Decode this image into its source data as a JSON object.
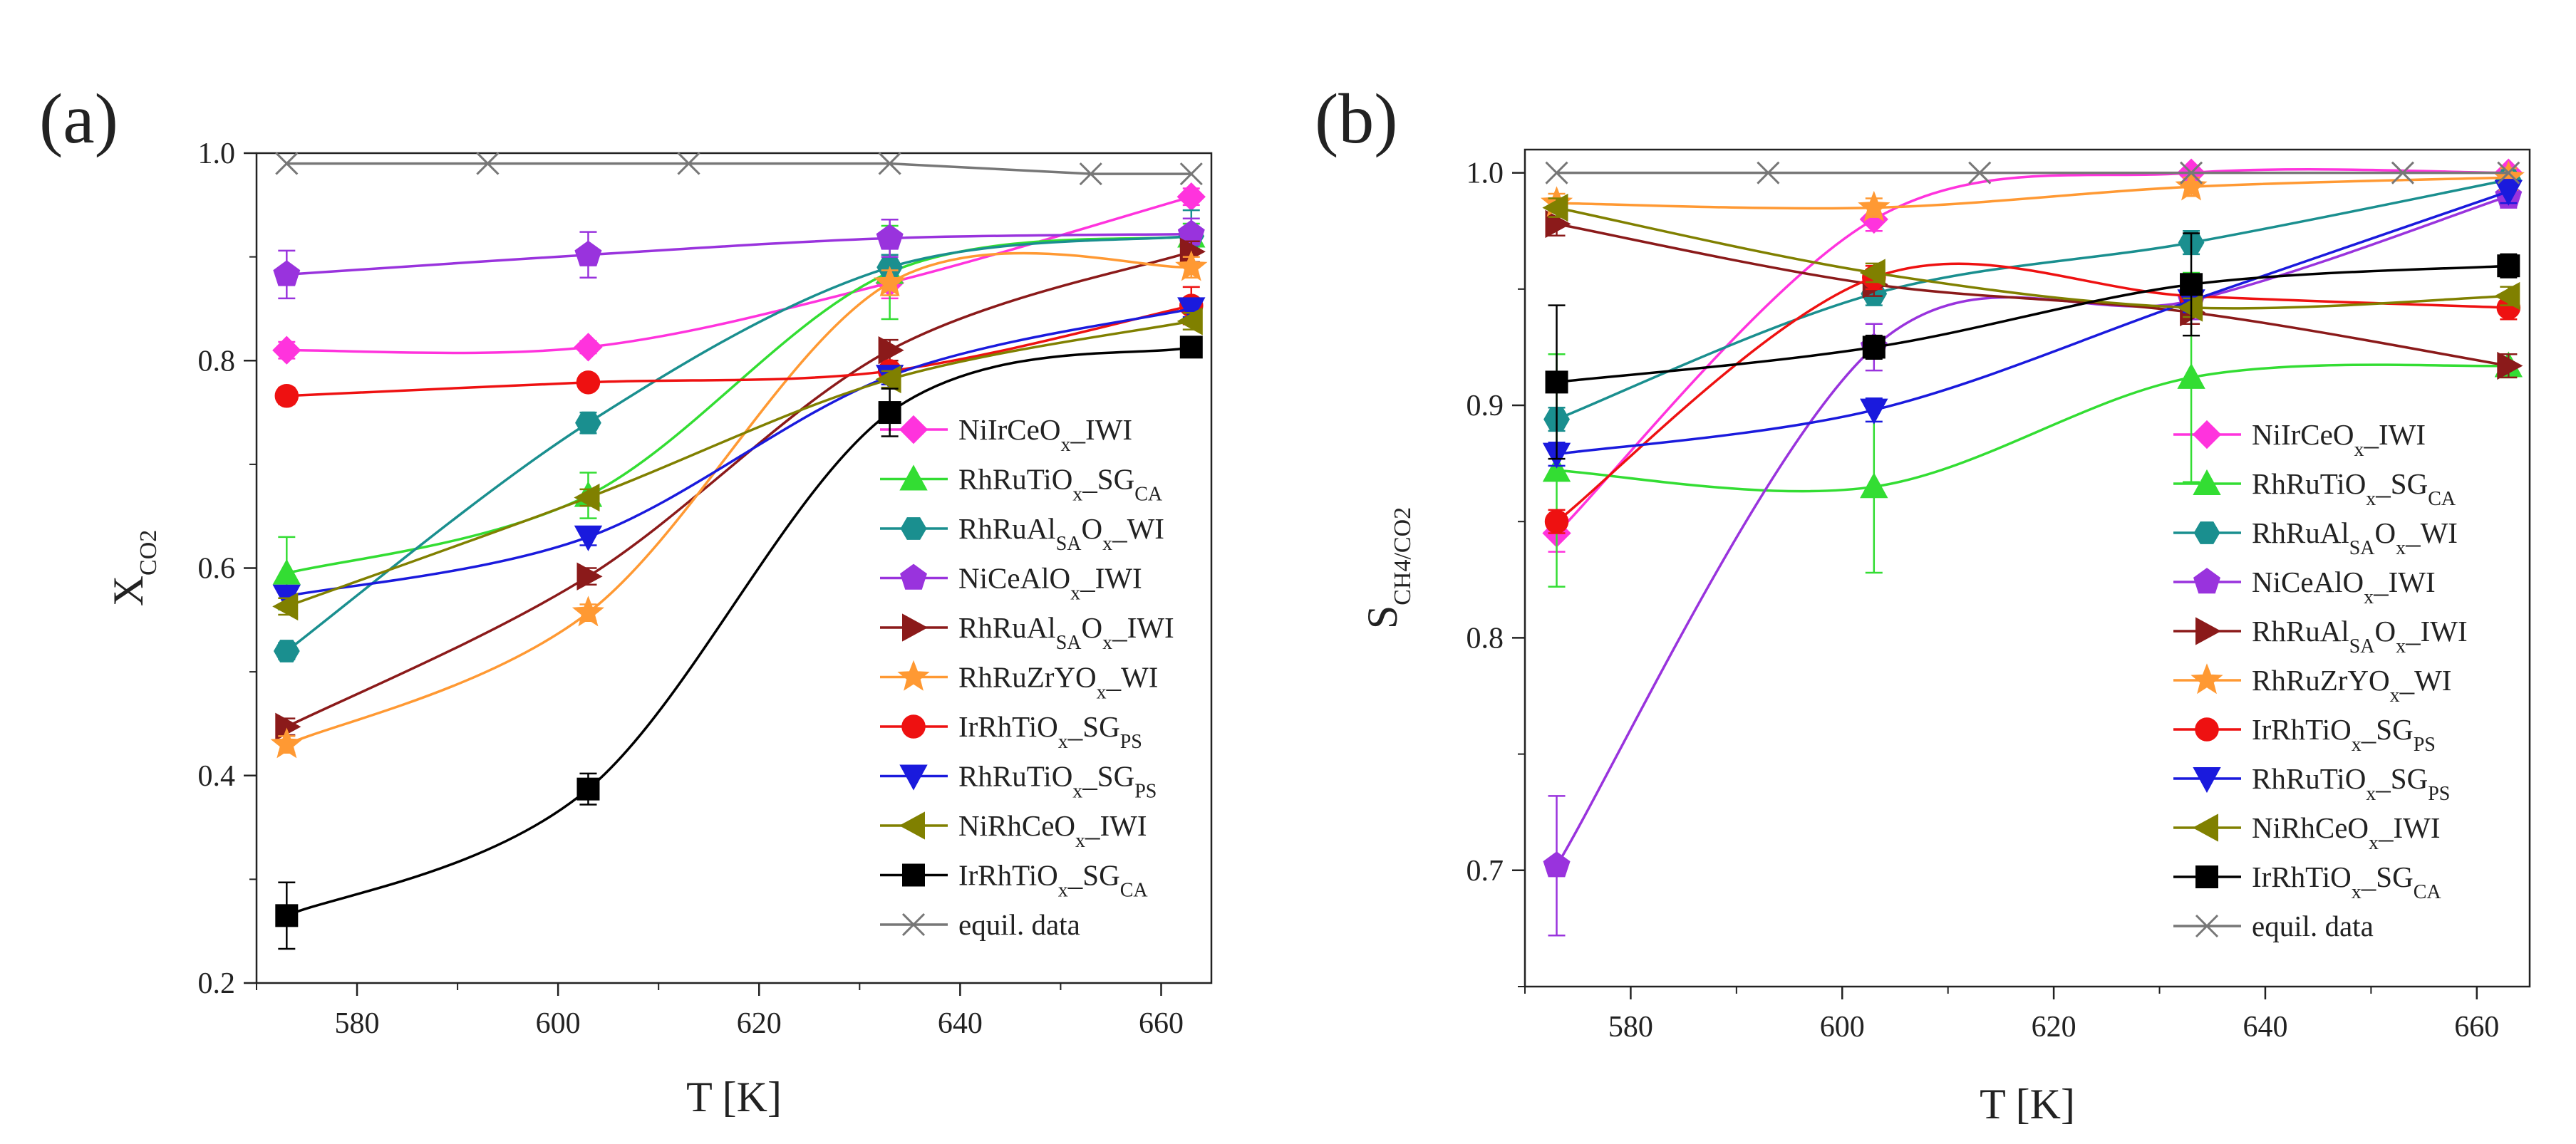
{
  "chart_data": [
    {
      "type": "line",
      "panel_label": "(a)",
      "xlabel": "T [K]",
      "ylabel": {
        "main": "X",
        "sub": "CO2"
      },
      "xlim": [
        570,
        665
      ],
      "ylim": [
        0.2,
        1.0
      ],
      "xticks": [
        "580",
        "600",
        "620",
        "640",
        "660"
      ],
      "yticks": [
        "0.2",
        "0.4",
        "0.6",
        "0.8",
        "1.0"
      ],
      "legend_position": "lower-right",
      "series": [
        {
          "name": "NiIrCeOx_IWI",
          "label": [
            {
              "t": "NiIrCeO"
            },
            {
              "t": "x",
              "s": 1
            },
            {
              "t": "_IWI"
            }
          ],
          "color": "#ff33dd",
          "marker": "diamond",
          "x": [
            573,
            603,
            633,
            663
          ],
          "y": [
            0.81,
            0.813,
            0.875,
            0.958
          ],
          "err": [
            0.008,
            0.006,
            0.015,
            0.008
          ]
        },
        {
          "name": "RhRuTiOx_SGCA",
          "label": [
            {
              "t": "RhRuTiO"
            },
            {
              "t": "x",
              "s": 1
            },
            {
              "t": "_SG"
            },
            {
              "t": "CA",
              "s": 1
            }
          ],
          "color": "#33dd33",
          "marker": "triangle-up",
          "x": [
            573,
            603,
            633,
            663
          ],
          "y": [
            0.595,
            0.67,
            0.885,
            0.92
          ],
          "err": [
            0.035,
            0.022,
            0.045,
            0.012
          ]
        },
        {
          "name": "RhRuAlSAOx_WI",
          "label": [
            {
              "t": "RhRuAl"
            },
            {
              "t": "SA",
              "s": 1
            },
            {
              "t": "O"
            },
            {
              "t": "x",
              "s": 1
            },
            {
              "t": "_WI"
            }
          ],
          "color": "#1a8f8f",
          "marker": "hexagon",
          "x": [
            573,
            603,
            633,
            663
          ],
          "y": [
            0.52,
            0.74,
            0.89,
            0.92
          ],
          "err": [
            0.008,
            0.01,
            0.012,
            0.025
          ]
        },
        {
          "name": "NiCeAlOx_IWI",
          "label": [
            {
              "t": "NiCeAlO"
            },
            {
              "t": "x",
              "s": 1
            },
            {
              "t": "_IWI"
            }
          ],
          "color": "#9933dd",
          "marker": "pentagon",
          "x": [
            573,
            603,
            633,
            663
          ],
          "y": [
            0.883,
            0.902,
            0.918,
            0.922
          ],
          "err": [
            0.023,
            0.022,
            0.018,
            0.015
          ]
        },
        {
          "name": "RhRuAlSAOx_IWI",
          "label": [
            {
              "t": "RhRuAl"
            },
            {
              "t": "SA",
              "s": 1
            },
            {
              "t": "O"
            },
            {
              "t": "x",
              "s": 1
            },
            {
              "t": "_IWI"
            }
          ],
          "color": "#8b1a1a",
          "marker": "triangle-right",
          "x": [
            573,
            603,
            633,
            663
          ],
          "y": [
            0.447,
            0.592,
            0.81,
            0.905
          ],
          "err": [
            0.008,
            0.008,
            0.01,
            0.01
          ]
        },
        {
          "name": "RhRuZrYOx_WI",
          "label": [
            {
              "t": "RhRuZrYO"
            },
            {
              "t": "x",
              "s": 1
            },
            {
              "t": "_WI"
            }
          ],
          "color": "#ff9933",
          "marker": "star",
          "x": [
            573,
            603,
            633,
            663
          ],
          "y": [
            0.43,
            0.557,
            0.875,
            0.89
          ],
          "err": [
            0.008,
            0.008,
            0.012,
            0.01
          ]
        },
        {
          "name": "IrRhTiOx_SGPS",
          "label": [
            {
              "t": "IrRhTiO"
            },
            {
              "t": "x",
              "s": 1
            },
            {
              "t": "_SG"
            },
            {
              "t": "PS",
              "s": 1
            }
          ],
          "color": "#ee1111",
          "marker": "circle",
          "x": [
            573,
            603,
            633,
            663
          ],
          "y": [
            0.766,
            0.779,
            0.79,
            0.853
          ],
          "err": [
            0.008,
            0.006,
            0.006,
            0.018
          ]
        },
        {
          "name": "RhRuTiOx_SGPS",
          "label": [
            {
              "t": "RhRuTiO"
            },
            {
              "t": "x",
              "s": 1
            },
            {
              "t": "_SG"
            },
            {
              "t": "PS",
              "s": 1
            }
          ],
          "color": "#1a1add",
          "marker": "triangle-down",
          "x": [
            573,
            603,
            633,
            663
          ],
          "y": [
            0.573,
            0.63,
            0.785,
            0.85
          ],
          "err": [
            0.008,
            0.008,
            0.008,
            0.008
          ]
        },
        {
          "name": "NiRhCeOx_IWI",
          "label": [
            {
              "t": "NiRhCeO"
            },
            {
              "t": "x",
              "s": 1
            },
            {
              "t": "_IWI"
            }
          ],
          "color": "#808000",
          "marker": "triangle-left",
          "x": [
            573,
            603,
            633,
            663
          ],
          "y": [
            0.563,
            0.668,
            0.782,
            0.838
          ],
          "err": [
            0.008,
            0.008,
            0.008,
            0.008
          ]
        },
        {
          "name": "IrRhTiOx_SGCA",
          "label": [
            {
              "t": "IrRhTiO"
            },
            {
              "t": "x",
              "s": 1
            },
            {
              "t": "_SG"
            },
            {
              "t": "CA",
              "s": 1
            }
          ],
          "color": "#000000",
          "marker": "square",
          "x": [
            573,
            603,
            633,
            663
          ],
          "y": [
            0.265,
            0.387,
            0.75,
            0.813
          ],
          "err": [
            0.032,
            0.015,
            0.023,
            0.006
          ]
        },
        {
          "name": "equil. data",
          "label": [
            {
              "t": "equil. data"
            }
          ],
          "color": "#777777",
          "marker": "x",
          "straight": true,
          "x": [
            573,
            593,
            613,
            633,
            653,
            663
          ],
          "y": [
            0.99,
            0.99,
            0.99,
            0.99,
            0.98,
            0.98
          ],
          "err": []
        }
      ]
    },
    {
      "type": "line",
      "panel_label": "(b)",
      "xlabel": "T [K]",
      "ylabel": {
        "main": "S",
        "sub": "CH4/CO2"
      },
      "xlim": [
        570,
        665
      ],
      "ylim": [
        0.65,
        1.01
      ],
      "xticks": [
        "580",
        "600",
        "620",
        "640",
        "660"
      ],
      "yticks": [
        "0.7",
        "0.8",
        "0.9",
        "1.0"
      ],
      "legend_position": "lower-right",
      "series": [
        {
          "name": "NiIrCeOx_IWI",
          "label": [
            {
              "t": "NiIrCeO"
            },
            {
              "t": "x",
              "s": 1
            },
            {
              "t": "_IWI"
            }
          ],
          "color": "#ff33dd",
          "marker": "diamond",
          "x": [
            573,
            603,
            633,
            663
          ],
          "y": [
            0.845,
            0.98,
            1.0,
            1.0
          ],
          "err": [
            0.008,
            0.005,
            0.002,
            0.002
          ]
        },
        {
          "name": "RhRuTiOx_SGCA",
          "label": [
            {
              "t": "RhRuTiO"
            },
            {
              "t": "x",
              "s": 1
            },
            {
              "t": "_SG"
            },
            {
              "t": "CA",
              "s": 1
            }
          ],
          "color": "#33dd33",
          "marker": "triangle-up",
          "x": [
            573,
            603,
            633,
            663
          ],
          "y": [
            0.872,
            0.865,
            0.912,
            0.917
          ],
          "err": [
            0.05,
            0.037,
            0.045,
            0.005
          ]
        },
        {
          "name": "RhRuAlSAOx_WI",
          "label": [
            {
              "t": "RhRuAl"
            },
            {
              "t": "SA",
              "s": 1
            },
            {
              "t": "O"
            },
            {
              "t": "x",
              "s": 1
            },
            {
              "t": "_WI"
            }
          ],
          "color": "#1a8f8f",
          "marker": "hexagon",
          "x": [
            573,
            603,
            633,
            663
          ],
          "y": [
            0.894,
            0.948,
            0.97,
            0.997
          ],
          "err": [
            0.005,
            0.005,
            0.005,
            0.003
          ]
        },
        {
          "name": "NiCeAlOx_IWI",
          "label": [
            {
              "t": "NiCeAlO"
            },
            {
              "t": "x",
              "s": 1
            },
            {
              "t": "_IWI"
            }
          ],
          "color": "#9933dd",
          "marker": "pentagon",
          "x": [
            573,
            603,
            633,
            663
          ],
          "y": [
            0.702,
            0.925,
            0.945,
            0.99
          ],
          "err": [
            0.03,
            0.01,
            0.008,
            0.005
          ]
        },
        {
          "name": "RhRuAlSAOx_IWI",
          "label": [
            {
              "t": "RhRuAl"
            },
            {
              "t": "SA",
              "s": 1
            },
            {
              "t": "O"
            },
            {
              "t": "x",
              "s": 1
            },
            {
              "t": "_IWI"
            }
          ],
          "color": "#8b1a1a",
          "marker": "triangle-right",
          "x": [
            573,
            603,
            633,
            663
          ],
          "y": [
            0.978,
            0.952,
            0.94,
            0.917
          ],
          "err": [
            0.005,
            0.005,
            0.005,
            0.005
          ]
        },
        {
          "name": "RhRuZrYOx_WI",
          "label": [
            {
              "t": "RhRuZrYO"
            },
            {
              "t": "x",
              "s": 1
            },
            {
              "t": "_WI"
            }
          ],
          "color": "#ff9933",
          "marker": "star",
          "x": [
            573,
            603,
            633,
            663
          ],
          "y": [
            0.987,
            0.985,
            0.994,
            0.998
          ],
          "err": [
            0.004,
            0.004,
            0.004,
            0.004
          ]
        },
        {
          "name": "IrRhTiOx_SGPS",
          "label": [
            {
              "t": "IrRhTiO"
            },
            {
              "t": "x",
              "s": 1
            },
            {
              "t": "_SG"
            },
            {
              "t": "PS",
              "s": 1
            }
          ],
          "color": "#ee1111",
          "marker": "circle",
          "x": [
            573,
            603,
            633,
            663
          ],
          "y": [
            0.85,
            0.955,
            0.947,
            0.942
          ],
          "err": [
            0.005,
            0.005,
            0.005,
            0.005
          ]
        },
        {
          "name": "RhRuTiOx_SGPS",
          "label": [
            {
              "t": "RhRuTiO"
            },
            {
              "t": "x",
              "s": 1
            },
            {
              "t": "_SG"
            },
            {
              "t": "PS",
              "s": 1
            }
          ],
          "color": "#1a1add",
          "marker": "triangle-down",
          "x": [
            573,
            603,
            633,
            663
          ],
          "y": [
            0.879,
            0.898,
            0.945,
            0.992
          ],
          "err": [
            0.005,
            0.005,
            0.005,
            0.005
          ]
        },
        {
          "name": "NiRhCeOx_IWI",
          "label": [
            {
              "t": "NiRhCeO"
            },
            {
              "t": "x",
              "s": 1
            },
            {
              "t": "_IWI"
            }
          ],
          "color": "#808000",
          "marker": "triangle-left",
          "x": [
            573,
            603,
            633,
            663
          ],
          "y": [
            0.985,
            0.957,
            0.942,
            0.947
          ],
          "err": [
            0.004,
            0.004,
            0.004,
            0.004
          ]
        },
        {
          "name": "IrRhTiOx_SGCA",
          "label": [
            {
              "t": "IrRhTiO"
            },
            {
              "t": "x",
              "s": 1
            },
            {
              "t": "_SG"
            },
            {
              "t": "CA",
              "s": 1
            }
          ],
          "color": "#000000",
          "marker": "square",
          "x": [
            573,
            603,
            633,
            663
          ],
          "y": [
            0.91,
            0.925,
            0.952,
            0.96
          ],
          "err": [
            0.033,
            0.005,
            0.022,
            0.005
          ]
        },
        {
          "name": "equil. data",
          "label": [
            {
              "t": "equil. data"
            }
          ],
          "color": "#777777",
          "marker": "x",
          "straight": true,
          "x": [
            573,
            593,
            613,
            633,
            653,
            663
          ],
          "y": [
            1.0,
            1.0,
            1.0,
            1.0,
            1.0,
            1.0
          ],
          "err": []
        }
      ]
    }
  ]
}
